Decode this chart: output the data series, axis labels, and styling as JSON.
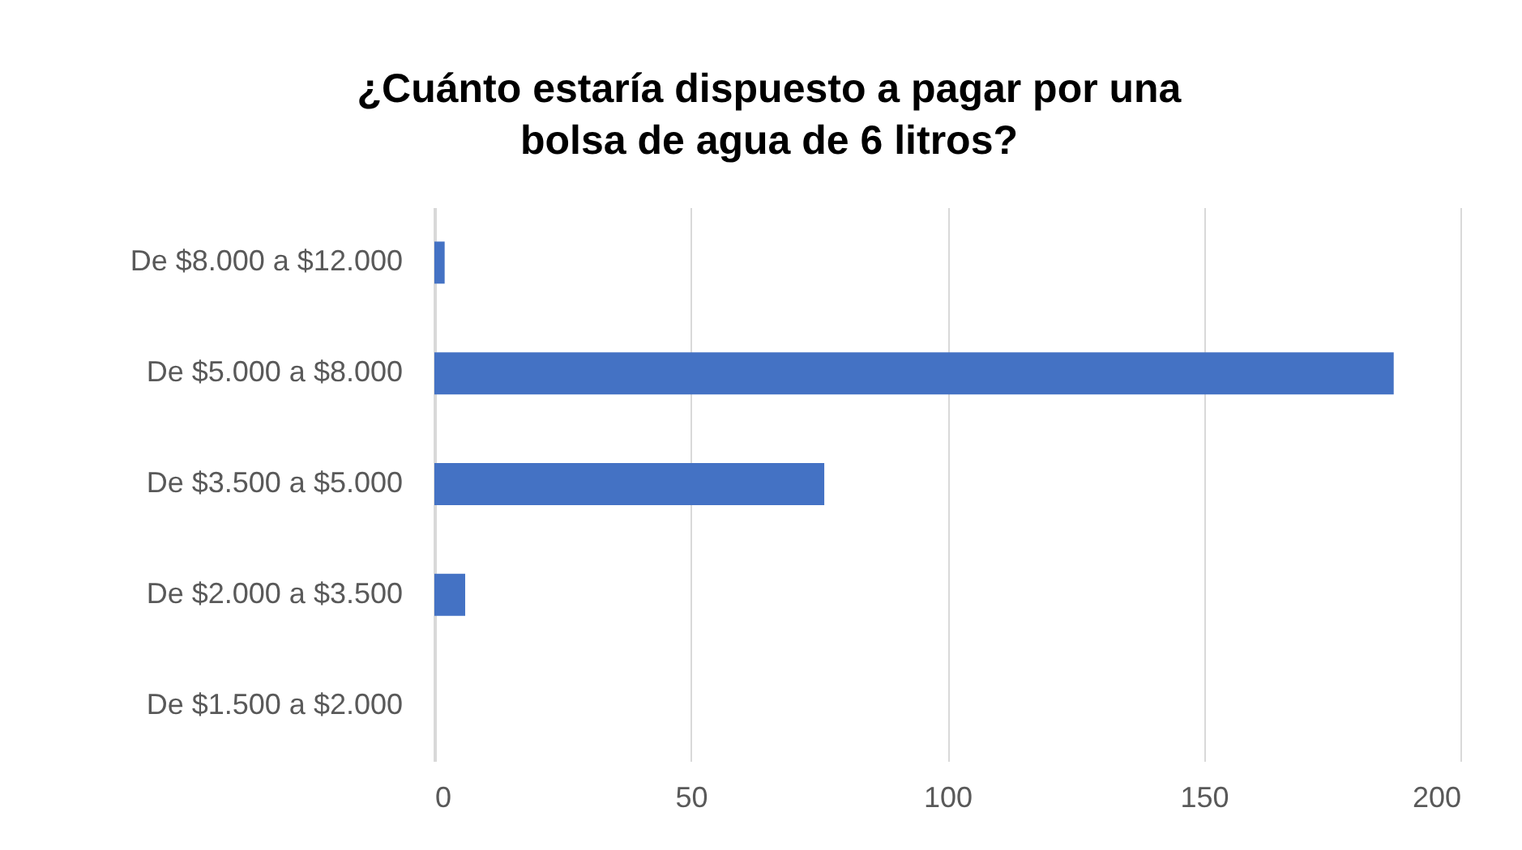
{
  "chart_data": {
    "type": "bar",
    "orientation": "horizontal",
    "title": "¿Cuánto estaría dispuesto a pagar por una\nbolsa de agua de 6 litros?",
    "categories": [
      "De $8.000 a $12.000",
      "De $5.000 a $8.000",
      "De $3.500 a $5.000",
      "De $2.000 a $3.500",
      "De $1.500 a $2.000"
    ],
    "values": [
      2,
      187,
      76,
      6,
      0
    ],
    "color": "#4472c4",
    "xlim": [
      0,
      200
    ],
    "xticks": [
      0,
      50,
      100,
      150,
      200
    ],
    "grid": "x"
  }
}
